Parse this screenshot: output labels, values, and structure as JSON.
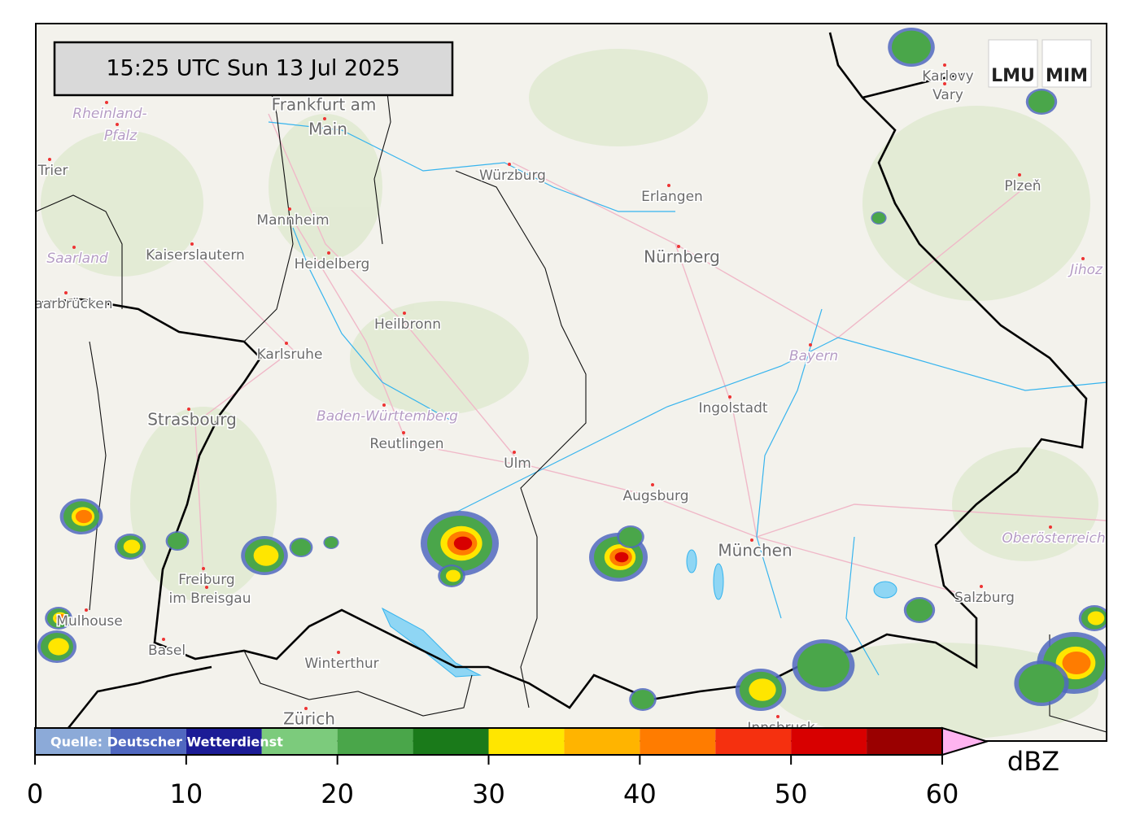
{
  "timestamp": "15:25 UTC  Sun 13 Jul 2025",
  "source": "Quelle: Deutscher Wetterdienst",
  "logos": [
    "LMU",
    "MIM"
  ],
  "map_labels": [
    "Frankfurt am",
    "Main",
    "Rheinland-",
    "Pfalz",
    "Trier",
    "Würzburg",
    "Erlangen",
    "Mannheim",
    "Kaiserslautern",
    "Heidelberg",
    "Nürnberg",
    "Saarland",
    "Saarbrücken",
    "Heilbronn",
    "Karlsruhe",
    "Bayern",
    "Ingolstadt",
    "Strasbourg",
    "Baden-Württemberg",
    "Reutlingen",
    "Ulm",
    "Augsburg",
    "München",
    "Oberösterreich",
    "Freiburg",
    "im Breisgau",
    "Mulhouse",
    "Salzburg",
    "Basel",
    "Winterthur",
    "Zürich",
    "Innsbruck",
    "Karlovy",
    "Vary",
    "Plzeň",
    "Jihoz"
  ],
  "colorbar": {
    "label": "dBZ",
    "bounds": [
      0,
      5,
      10,
      15,
      20,
      25,
      30,
      35,
      40,
      45,
      50,
      55,
      60
    ],
    "colors": [
      "#8caad8",
      "#5068c0",
      "#1c1c96",
      "#7ccb7c",
      "#4aa64a",
      "#1a7a1a",
      "#ffe600",
      "#ffb400",
      "#ff7c00",
      "#f5300f",
      "#d80000",
      "#9a0000"
    ],
    "over_color": "#ffb4f0",
    "ticks": [
      0,
      10,
      20,
      30,
      40,
      50,
      60
    ]
  }
}
